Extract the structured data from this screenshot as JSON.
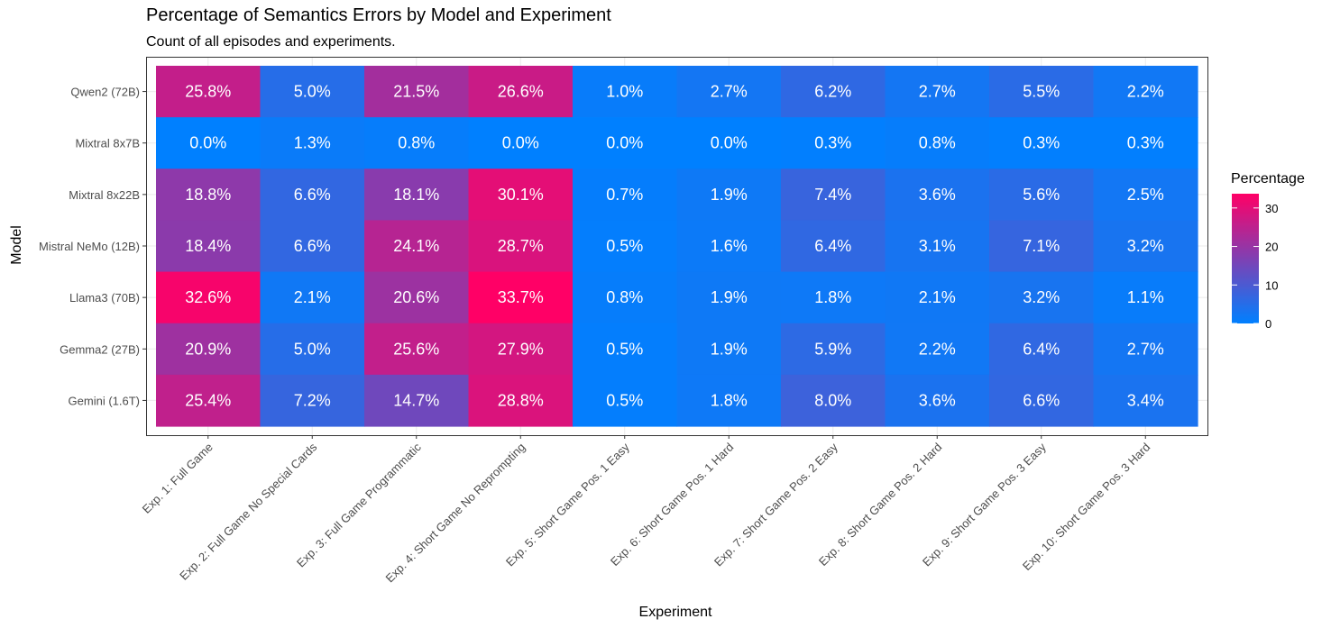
{
  "chart_data": {
    "type": "heatmap",
    "title": "Percentage of Semantics Errors by Model and Experiment",
    "subtitle": "Count of all episodes and experiments.",
    "xlabel": "Experiment",
    "ylabel": "Model",
    "x_categories": [
      "Exp. 1: Full Game",
      "Exp. 2: Full Game No Special Cards",
      "Exp. 3: Full Game Programmatic",
      "Exp. 4: Short Game No Reprompting",
      "Exp. 5: Short Game Pos. 1 Easy",
      "Exp. 6: Short Game Pos. 1 Hard",
      "Exp. 7: Short Game Pos. 2 Easy",
      "Exp. 8: Short Game Pos. 2 Hard",
      "Exp. 9: Short Game Pos. 3 Easy",
      "Exp. 10: Short Game Pos. 3 Hard"
    ],
    "y_categories": [
      "Qwen2 (72B)",
      "Mixtral 8x7B",
      "Mixtral 8x22B",
      "Mistral NeMo (12B)",
      "Llama3 (70B)",
      "Gemma2 (27B)",
      "Gemini (1.6T)"
    ],
    "values": [
      [
        25.8,
        5.0,
        21.5,
        26.6,
        1.0,
        2.7,
        6.2,
        2.7,
        5.5,
        2.2
      ],
      [
        0.0,
        1.3,
        0.8,
        0.0,
        0.0,
        0.0,
        0.3,
        0.8,
        0.3,
        0.3
      ],
      [
        18.8,
        6.6,
        18.1,
        30.1,
        0.7,
        1.9,
        7.4,
        3.6,
        5.6,
        2.5
      ],
      [
        18.4,
        6.6,
        24.1,
        28.7,
        0.5,
        1.6,
        6.4,
        3.1,
        7.1,
        3.2
      ],
      [
        32.6,
        2.1,
        20.6,
        33.7,
        0.8,
        1.9,
        1.8,
        2.1,
        3.2,
        1.1
      ],
      [
        20.9,
        5.0,
        25.6,
        27.9,
        0.5,
        1.9,
        5.9,
        2.2,
        6.4,
        2.7
      ],
      [
        25.4,
        7.2,
        14.7,
        28.8,
        0.5,
        1.8,
        8.0,
        3.6,
        6.6,
        3.4
      ]
    ],
    "value_suffix": "%",
    "legend": {
      "title": "Percentage",
      "ticks": [
        0,
        10,
        20,
        30
      ],
      "range": [
        0,
        33.7
      ],
      "placement": "right"
    },
    "colors": {
      "low": "#0080ff",
      "high": "#ff0066",
      "panel_background": "#ffffff",
      "panel_border": "#333333",
      "label_color": "#ffffff"
    },
    "grid": true
  }
}
